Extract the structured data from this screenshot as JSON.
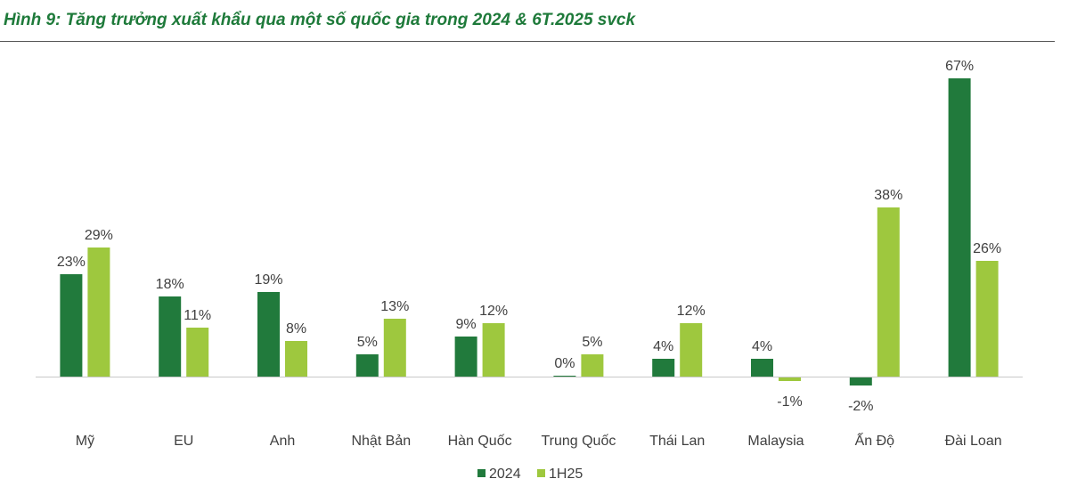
{
  "title": "Hình 9: Tăng trưởng xuất khẩu qua một số quốc gia trong 2024 & 6T.2025 svck",
  "chart_data": {
    "type": "bar",
    "categories": [
      "Mỹ",
      "EU",
      "Anh",
      "Nhật Bản",
      "Hàn Quốc",
      "Trung Quốc",
      "Thái Lan",
      "Malaysia",
      "Ấn Độ",
      "Đài Loan"
    ],
    "series": [
      {
        "name": "2024",
        "values": [
          23,
          18,
          19,
          5,
          9,
          0,
          4,
          4,
          -2,
          67
        ],
        "labels": [
          "23%",
          "18%",
          "19%",
          "5%",
          "9%",
          "0%",
          "4%",
          "4%",
          "-2%",
          "67%"
        ],
        "color": "#217a3c"
      },
      {
        "name": "1H25",
        "values": [
          29,
          11,
          8,
          13,
          12,
          5,
          12,
          -1,
          38,
          26
        ],
        "labels": [
          "29%",
          "11%",
          "8%",
          "13%",
          "12%",
          "5%",
          "12%",
          "-1%",
          "38%",
          "26%"
        ],
        "color": "#9ec83e"
      }
    ],
    "ylim": [
      -5,
      70
    ],
    "grid": false,
    "legend_position": "bottom",
    "axis_color": "#c8c8c8"
  }
}
